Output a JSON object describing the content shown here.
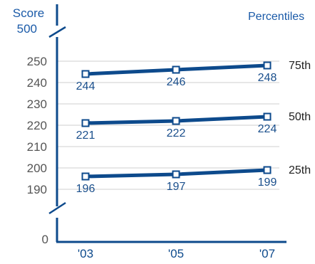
{
  "chart_data": {
    "type": "line",
    "y_axis_label": "Score",
    "y_axis_top_label": "500",
    "y_axis_zero_label": "0",
    "y_ticks": [
      250,
      240,
      230,
      220,
      210,
      200,
      190
    ],
    "y_range": [
      190,
      250
    ],
    "y_axis_break": true,
    "grid": true,
    "categories": [
      "'03",
      "'05",
      "'07"
    ],
    "legend_title": "Percentiles",
    "series": [
      {
        "name": "75th",
        "values": [
          244,
          246,
          248
        ]
      },
      {
        "name": "50th",
        "values": [
          221,
          222,
          224
        ]
      },
      {
        "name": "25th",
        "values": [
          196,
          197,
          199
        ]
      }
    ],
    "colors": {
      "series": "#0d4a8c",
      "axis": "#0d4a8c",
      "tick_text": "#555555",
      "value_text": "#1a4f8c",
      "legend_title": "#1a5aa8",
      "grid": "#cfcfcf"
    }
  }
}
